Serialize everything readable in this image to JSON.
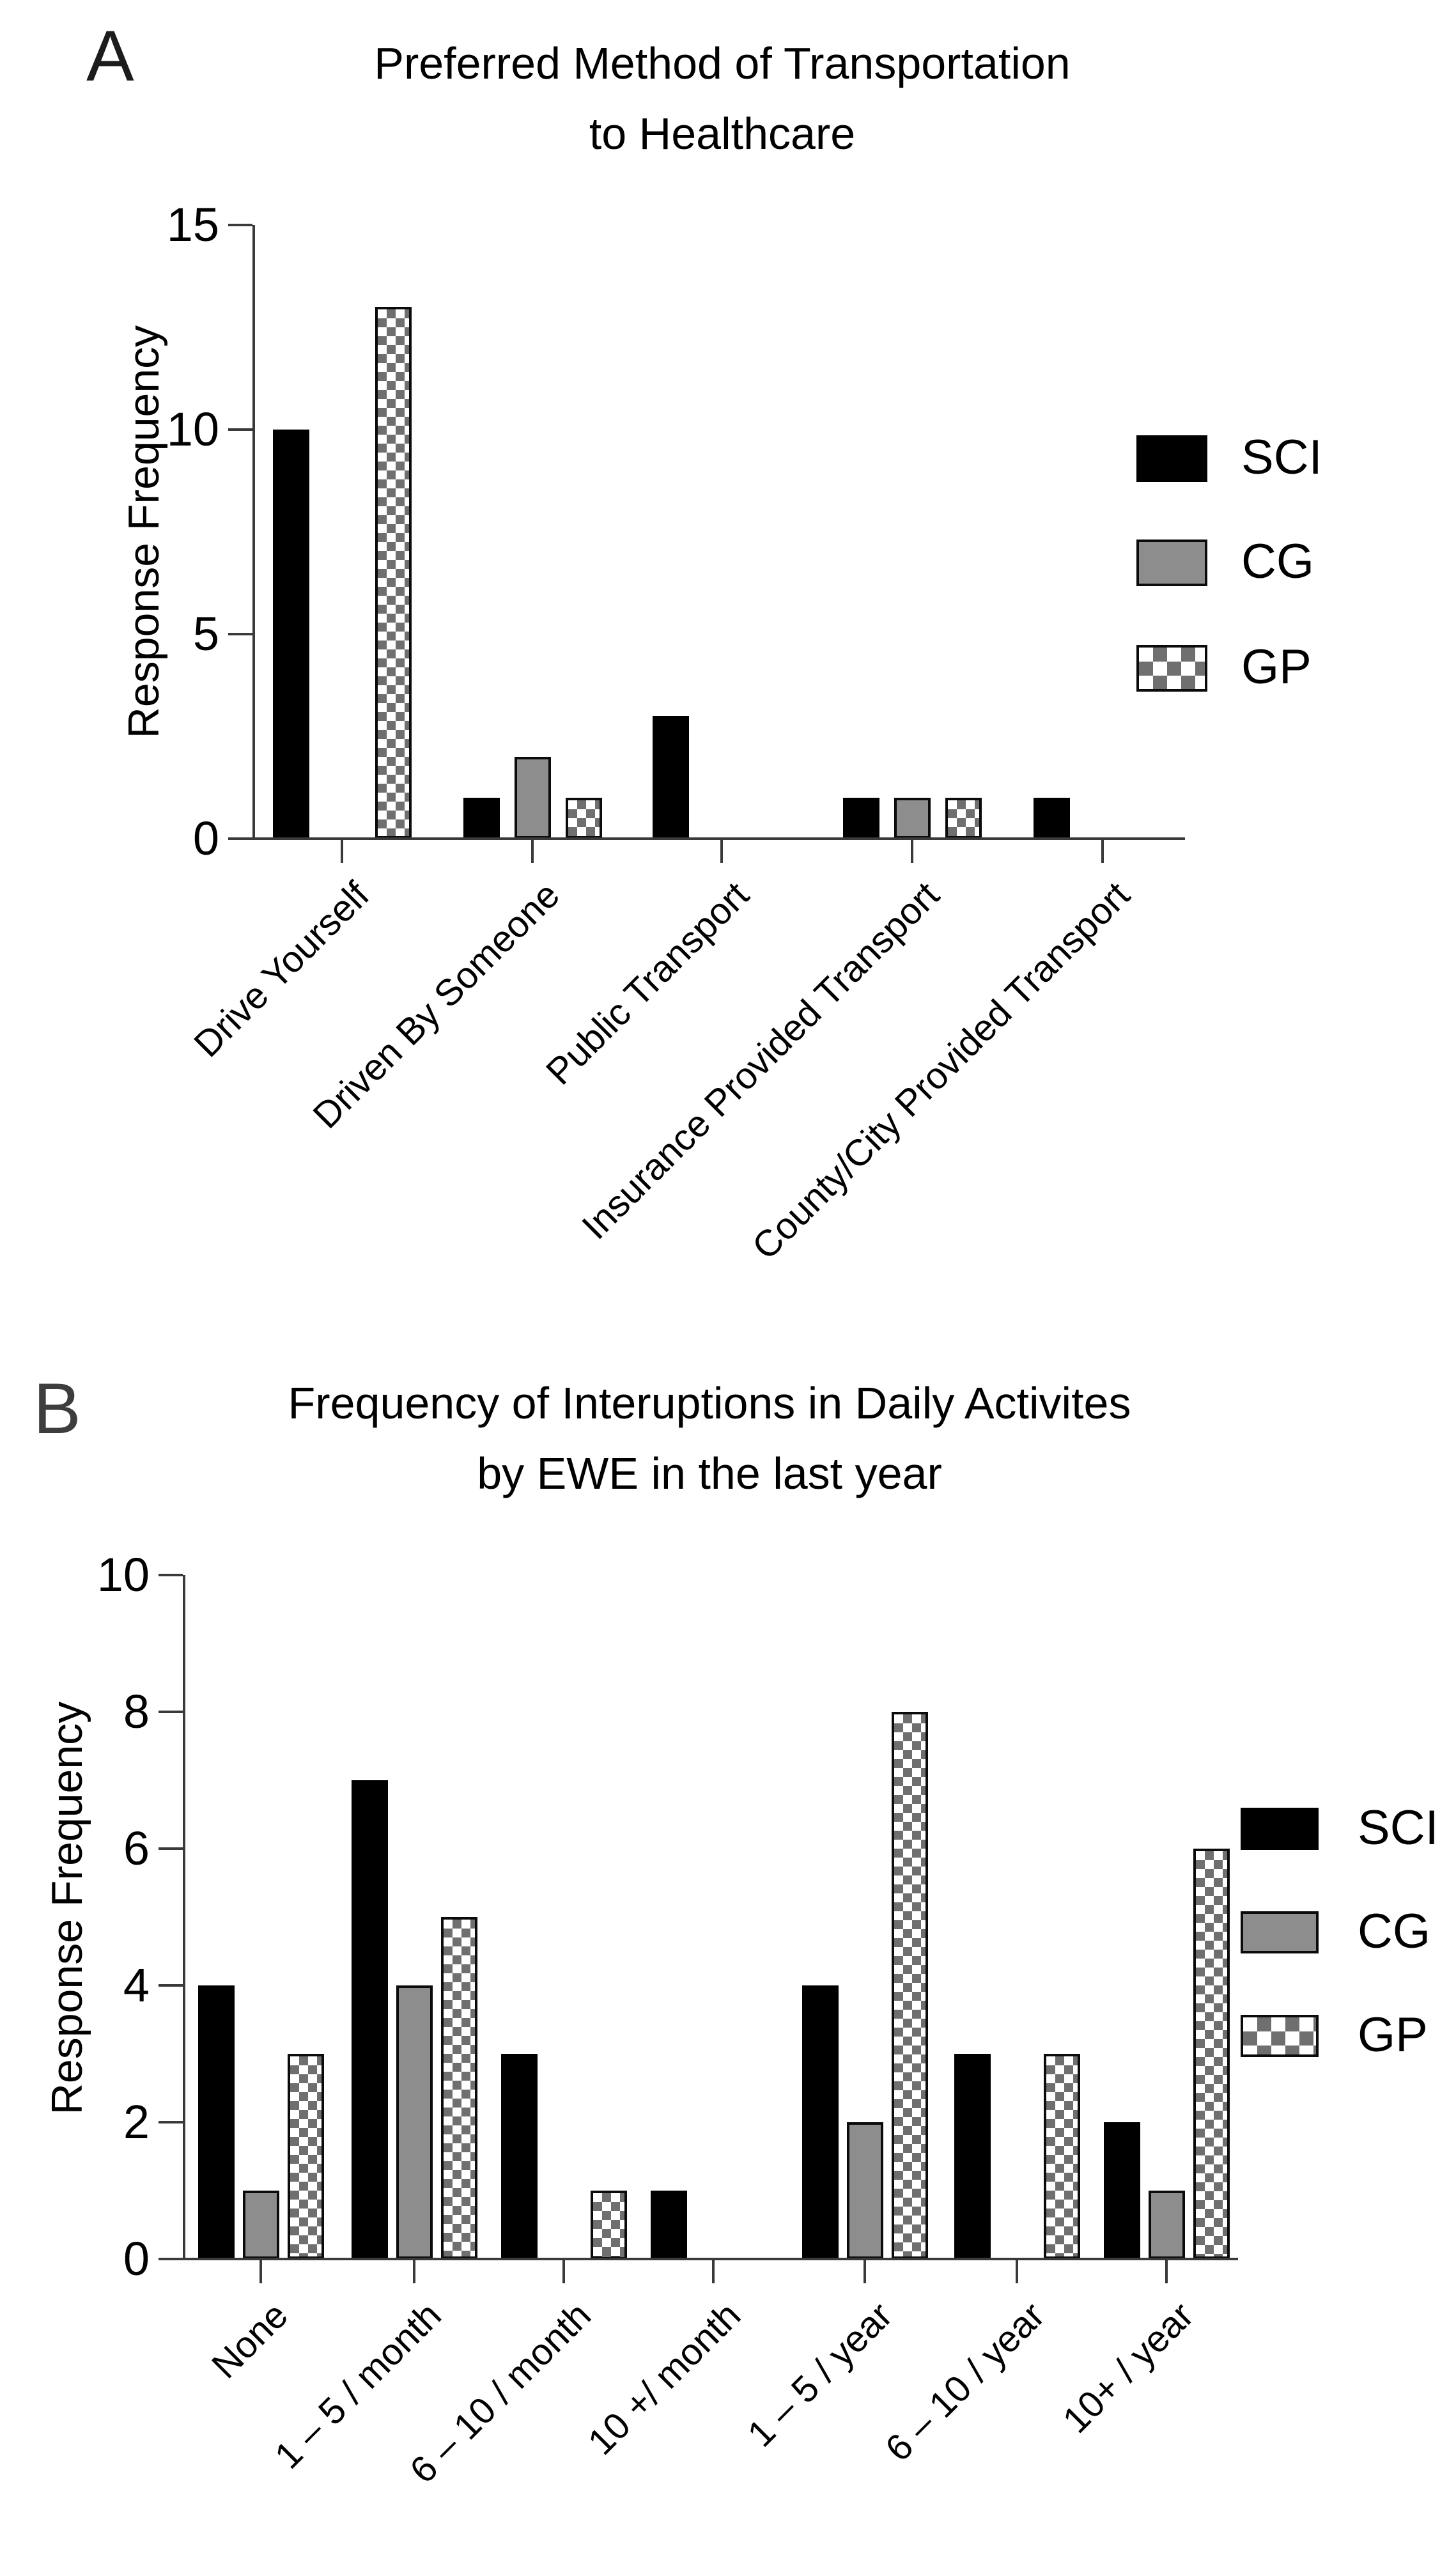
{
  "colors": {
    "sci_black": "#000000",
    "cg_gray": "#8d8d8d",
    "gp_checker_gray": "#6f6f6f",
    "axis": "#3a3a3a",
    "text": "#000000"
  },
  "panels": [
    {
      "label": "A",
      "title_line1": "Preferred Method of Transportation",
      "title_line2": "to Healthcare",
      "y_axis_label": "Response Frequency",
      "legend": [
        "SCI",
        "CG",
        "GP"
      ]
    },
    {
      "label": "B",
      "title_line1": "Frequency of Interuptions in Daily Activites",
      "title_line2": "by EWE in the last year",
      "y_axis_label": "Response Frequency",
      "legend": [
        "SCI",
        "CG",
        "GP"
      ]
    }
  ],
  "chart_data": [
    {
      "type": "bar",
      "title": "Preferred Method of Transportation to Healthcare",
      "xlabel": "",
      "ylabel": "Response Frequency",
      "ylim": [
        0,
        15
      ],
      "yticks": [
        0,
        5,
        10,
        15
      ],
      "grid": false,
      "legend_position": "right",
      "categories": [
        "Drive Yourself",
        "Driven By Someone",
        "Public Transport",
        "Insurance Provided Transport",
        "County/City Provided Transport"
      ],
      "series": [
        {
          "name": "SCI",
          "style": "solid-black",
          "values": [
            10,
            1,
            3,
            1,
            1
          ]
        },
        {
          "name": "CG",
          "style": "solid-gray",
          "values": [
            0,
            2,
            0,
            1,
            0
          ]
        },
        {
          "name": "GP",
          "style": "checkerboard",
          "values": [
            13,
            1,
            0,
            1,
            0
          ]
        }
      ]
    },
    {
      "type": "bar",
      "title": "Frequency of Interuptions in Daily Activites by EWE in the last year",
      "xlabel": "",
      "ylabel": "Response Frequency",
      "ylim": [
        0,
        10
      ],
      "yticks": [
        0,
        2,
        4,
        6,
        8,
        10
      ],
      "grid": false,
      "legend_position": "right",
      "categories": [
        "None",
        "1 – 5 / month",
        "6 – 10 / month",
        "10 +/ month",
        "1 – 5 / year",
        "6 – 10 / year",
        "10+ / year"
      ],
      "series": [
        {
          "name": "SCI",
          "style": "solid-black",
          "values": [
            4,
            7,
            3,
            1,
            4,
            3,
            2
          ]
        },
        {
          "name": "CG",
          "style": "solid-gray",
          "values": [
            1,
            4,
            0,
            0,
            2,
            0,
            1
          ]
        },
        {
          "name": "GP",
          "style": "checkerboard",
          "values": [
            3,
            5,
            1,
            0,
            8,
            3,
            6
          ]
        }
      ]
    }
  ]
}
